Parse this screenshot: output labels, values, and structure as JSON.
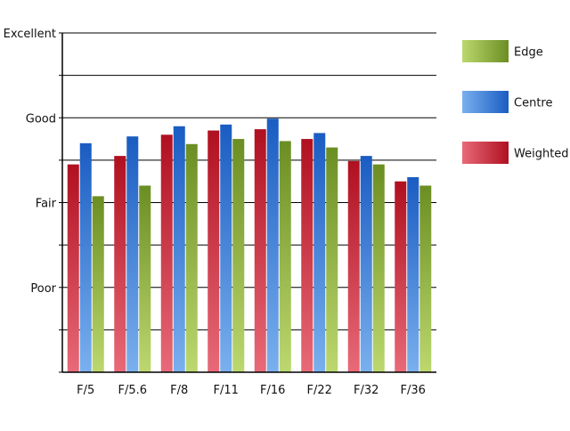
{
  "chart_data": {
    "type": "bar",
    "categories": [
      "F/5",
      "F/5.6",
      "F/8",
      "F/11",
      "F/16",
      "F/22",
      "F/32",
      "F/36"
    ],
    "y_tick_labels": [
      "Poor",
      "Fair",
      "Good",
      "Excellent"
    ],
    "ylim": [
      0,
      8
    ],
    "label_tick_values": [
      2,
      4,
      6,
      8
    ],
    "grid": true,
    "legend_position": "right",
    "series": [
      {
        "name": "Weighted",
        "color_dark": "#b01020",
        "color_light": "#e86a78",
        "values": [
          4.9,
          5.1,
          5.6,
          5.7,
          5.73,
          5.5,
          4.98,
          4.5
        ]
      },
      {
        "name": "Centre",
        "color_dark": "#1a5cc2",
        "color_light": "#7ab0ee",
        "values": [
          5.4,
          5.56,
          5.8,
          5.84,
          5.98,
          5.64,
          5.1,
          4.6
        ]
      },
      {
        "name": "Edge",
        "color_dark": "#6b8e23",
        "color_light": "#bcd86e",
        "values": [
          4.15,
          4.4,
          5.38,
          5.5,
          5.45,
          5.3,
          4.9,
          4.4
        ]
      }
    ],
    "legend_order": [
      "Edge",
      "Centre",
      "Weighted"
    ]
  }
}
